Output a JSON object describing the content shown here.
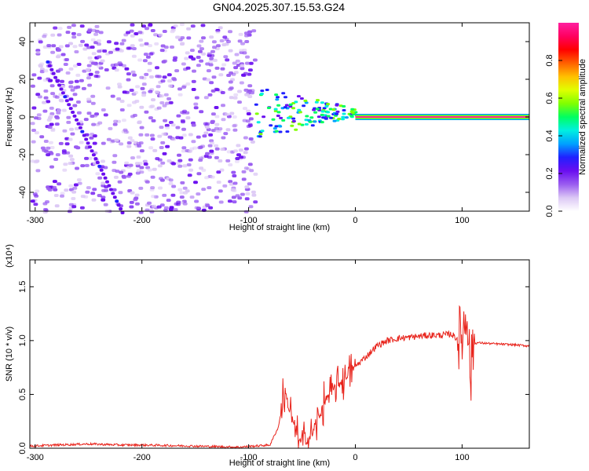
{
  "page_title": "GN04.2025.307.15.53.G24",
  "chart_data": [
    {
      "type": "heatmap",
      "title": "GN04.2025.307.15.53.G24",
      "xlabel": "Height of straight line (km)",
      "ylabel": "Frequency (Hz)",
      "xlim": [
        -305,
        163
      ],
      "ylim": [
        -50,
        50
      ],
      "x_ticks": [
        -300,
        -200,
        -100,
        0,
        100
      ],
      "y_ticks": [
        -40,
        -20,
        0,
        20,
        40
      ],
      "colorbar": {
        "label": "Normalized spectral amplitude",
        "range": [
          0,
          1
        ],
        "ticks": [
          "0.0",
          "0.2",
          "0.4",
          "0.6",
          "0.8"
        ],
        "colors": [
          "#ffffff",
          "#dcc8f5",
          "#9a5cf0",
          "#6a0ef0",
          "#2020ff",
          "#00a0ff",
          "#00f0e0",
          "#00ff60",
          "#80ff00",
          "#e0ff00",
          "#ffc000",
          "#ff6000",
          "#ff0000",
          "#ff0060",
          "#ff20a0"
        ]
      },
      "features": {
        "noise_region_x": [
          -305,
          -95
        ],
        "transition_region_x": [
          -95,
          0
        ],
        "carrier_line_x": [
          0,
          163
        ],
        "carrier_frequency": 0
      }
    },
    {
      "type": "line",
      "xlabel": "Height of straight line (km)",
      "ylabel": "SNR (10 * v/v)",
      "y_scale_label": "(x10⁴)",
      "xlim": [
        -305,
        163
      ],
      "ylim": [
        0,
        1.75
      ],
      "x_ticks": [
        -300,
        -200,
        -100,
        0,
        100
      ],
      "y_ticks": [
        "0.0",
        "0.5",
        "1.0",
        "1.5"
      ],
      "series": [
        {
          "color": "#e8241c",
          "x": [
            -305,
            -280,
            -250,
            -220,
            -200,
            -150,
            -110,
            -80,
            -72,
            -68,
            -65,
            -60,
            -55,
            -50,
            -45,
            -40,
            -35,
            -30,
            -25,
            -20,
            -15,
            -10,
            -5,
            0,
            10,
            20,
            30,
            40,
            50,
            60,
            70,
            80,
            90,
            95,
            100,
            105,
            108,
            110,
            115,
            130,
            150,
            163
          ],
          "y": [
            0.02,
            0.03,
            0.04,
            0.03,
            0.03,
            0.02,
            0.01,
            0.03,
            0.2,
            0.45,
            0.5,
            0.3,
            0.12,
            0.05,
            0.07,
            0.15,
            0.25,
            0.4,
            0.5,
            0.55,
            0.6,
            0.65,
            0.7,
            0.76,
            0.85,
            0.95,
            1.0,
            1.02,
            1.03,
            1.04,
            1.05,
            1.05,
            1.06,
            1.02,
            1.05,
            1.3,
            0.6,
            0.97,
            0.98,
            0.97,
            0.96,
            0.95
          ]
        }
      ]
    }
  ]
}
